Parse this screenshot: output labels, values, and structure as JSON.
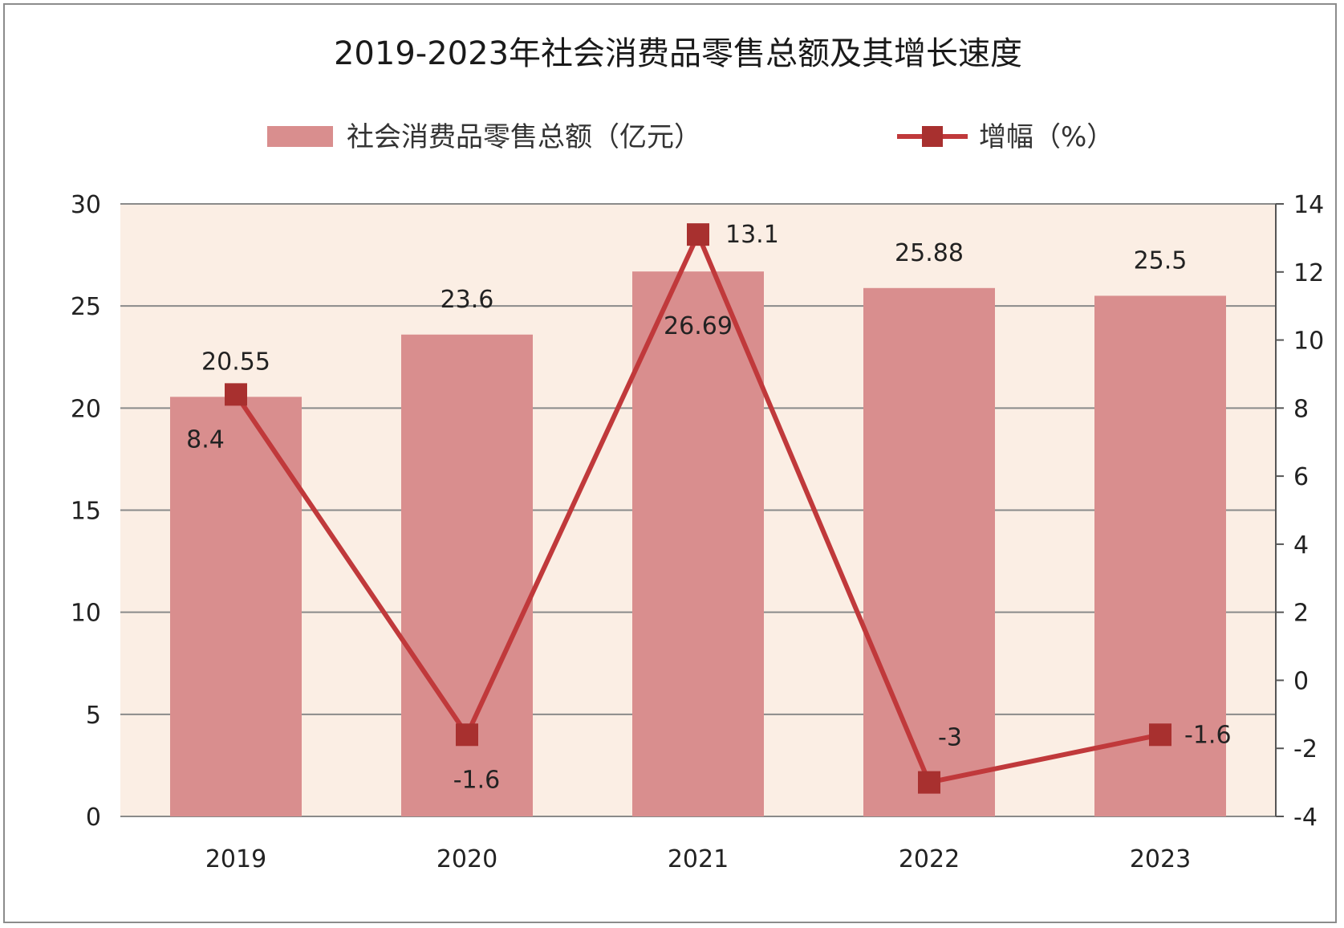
{
  "chart_data": {
    "type": "bar+line",
    "title": "2019-2023年社会消费品零售总额及其增长速度",
    "categories": [
      "2019",
      "2020",
      "2021",
      "2022",
      "2023"
    ],
    "series": [
      {
        "name": "社会消费品零售总额（亿元）",
        "type": "bar",
        "axis": "left",
        "values": [
          20.55,
          23.6,
          26.69,
          25.88,
          25.5
        ],
        "labels": [
          "20.55",
          "23.6",
          "26.69",
          "25.88",
          "25.5"
        ]
      },
      {
        "name": "增幅（%）",
        "type": "line",
        "axis": "right",
        "values": [
          8.4,
          -1.6,
          13.1,
          -3,
          -1.6
        ],
        "labels": [
          "8.4",
          "-1.6",
          "13.1",
          "-3",
          "-1.6"
        ]
      }
    ],
    "left_axis": {
      "ylim": [
        0,
        30
      ],
      "ticks": [
        "0",
        "5",
        "10",
        "15",
        "20",
        "25",
        "30"
      ]
    },
    "right_axis": {
      "ylim": [
        -4,
        14
      ],
      "ticks": [
        "-4",
        "-2",
        "0",
        "2",
        "4",
        "6",
        "8",
        "10",
        "12",
        "14"
      ]
    },
    "grid": true,
    "legend_position": "top",
    "colors": {
      "bar": "#d98e8e",
      "line": "#c0393b",
      "marker": "#a8302f",
      "plot_background": "#fbeee4",
      "gridline": "#8a8a8a"
    }
  }
}
